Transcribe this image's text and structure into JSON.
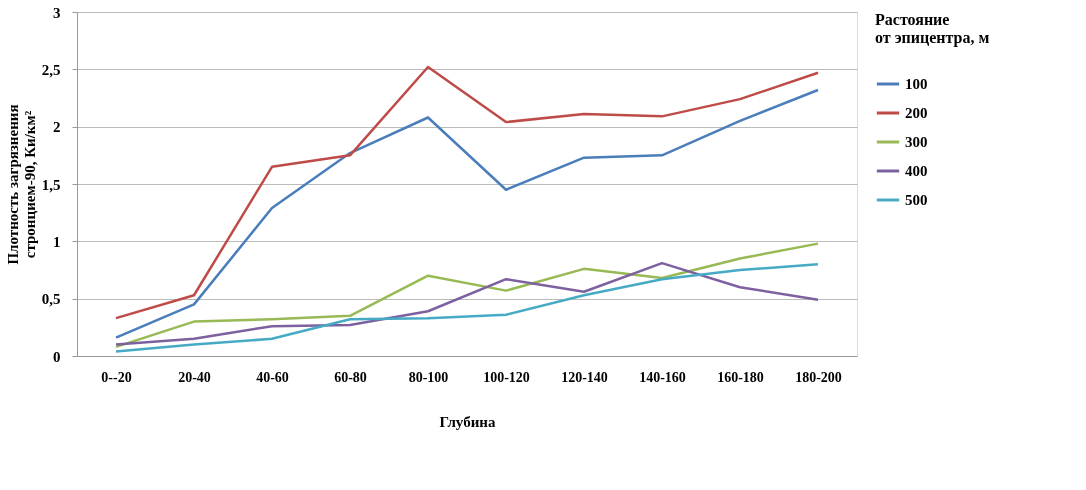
{
  "chart_data": {
    "type": "line",
    "xlabel": "Глубина",
    "ylabel": "Плотность загрязнения стронцием-90, Ки/км²",
    "legend_title": "Растояние от эпицентра, м",
    "categories": [
      "0--20",
      "20-40",
      "40-60",
      "60-80",
      "80-100",
      "100-120",
      "120-140",
      "140-160",
      "160-180",
      "180-200"
    ],
    "series": [
      {
        "name": "100",
        "color": "#4a7ebb",
        "values": [
          0.16,
          0.45,
          1.29,
          1.77,
          2.08,
          1.45,
          1.73,
          1.75,
          2.05,
          2.32
        ]
      },
      {
        "name": "200",
        "color": "#be4b48",
        "values": [
          0.33,
          0.53,
          1.65,
          1.75,
          2.52,
          2.04,
          2.11,
          2.09,
          2.24,
          2.47
        ]
      },
      {
        "name": "300",
        "color": "#98b954",
        "values": [
          0.08,
          0.3,
          0.32,
          0.35,
          0.7,
          0.57,
          0.76,
          0.68,
          0.85,
          0.98
        ]
      },
      {
        "name": "400",
        "color": "#7d60a0",
        "values": [
          0.1,
          0.15,
          0.26,
          0.27,
          0.39,
          0.67,
          0.56,
          0.81,
          0.6,
          0.49
        ]
      },
      {
        "name": "500",
        "color": "#46aac5",
        "values": [
          0.04,
          0.1,
          0.15,
          0.32,
          0.33,
          0.36,
          0.53,
          0.67,
          0.75,
          0.8
        ]
      }
    ],
    "ylim": [
      0,
      3
    ],
    "yticks": [
      0,
      {
        "value": 0.5,
        "label": "0,5"
      },
      1,
      {
        "value": 1.5,
        "label": "1,5"
      },
      2,
      {
        "value": 2.5,
        "label": "2,5"
      },
      3
    ],
    "grid": "y",
    "legend": "right",
    "marker": "none",
    "line_style": "solid"
  }
}
